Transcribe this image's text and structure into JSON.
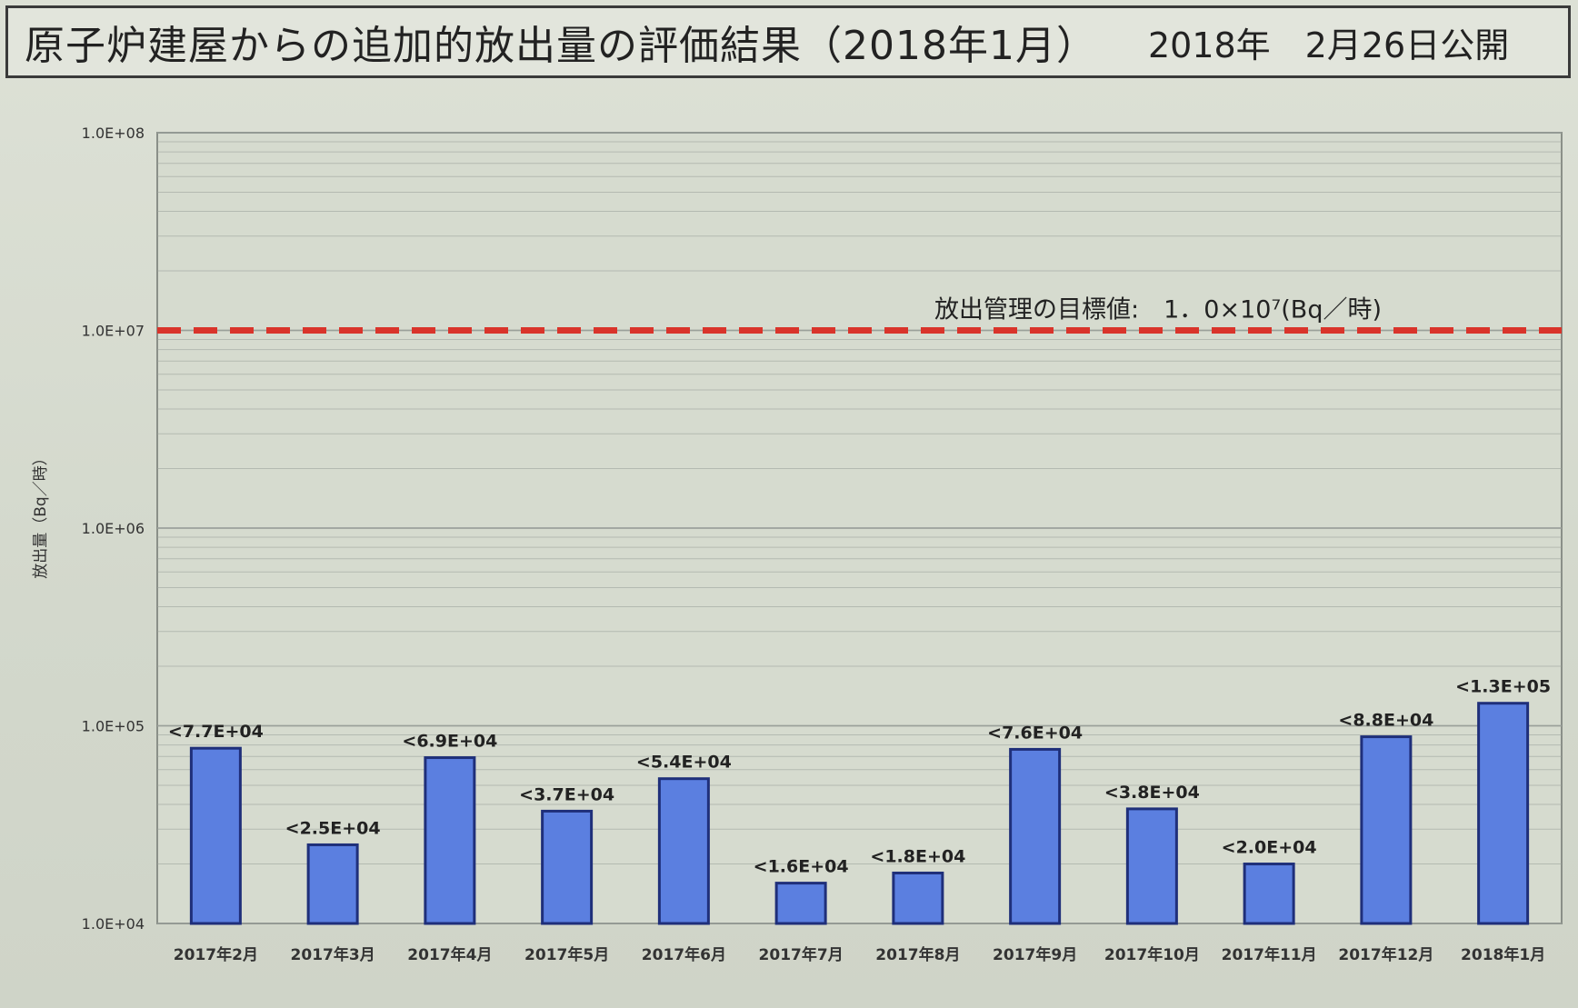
{
  "title": {
    "main": "原子炉建屋からの追加的放出量の評価結果（2018年1月）",
    "published": "2018年　2月26日公開"
  },
  "colors": {
    "bar_fill": "#5b7fe0",
    "bar_stroke": "#1f2f7a",
    "target_line": "#d9342b",
    "grid": "#9aa09a",
    "background": "#d7dbd0"
  },
  "chart_data": {
    "type": "bar",
    "ylabel": "放出量（Bq／時）",
    "yscale": "log",
    "ylim": [
      10000,
      100000000
    ],
    "yticks": [
      10000,
      100000,
      1000000,
      10000000,
      100000000
    ],
    "yticklabels": [
      "1.0E+04",
      "1.0E+05",
      "1.0E+06",
      "1.0E+07",
      "1.0E+08"
    ],
    "grid": true,
    "categories": [
      "2017年2月",
      "2017年3月",
      "2017年4月",
      "2017年5月",
      "2017年6月",
      "2017年7月",
      "2017年8月",
      "2017年9月",
      "2017年10月",
      "2017年11月",
      "2017年12月",
      "2018年1月"
    ],
    "values": [
      77000,
      25000,
      69000,
      37000,
      54000,
      16000,
      18000,
      76000,
      38000,
      20000,
      88000,
      130000
    ],
    "data_labels": [
      "<7.7E+04",
      "<2.5E+04",
      "<6.9E+04",
      "<3.7E+04",
      "<5.4E+04",
      "<1.6E+04",
      "<1.8E+04",
      "<7.6E+04",
      "<3.8E+04",
      "<2.0E+04",
      "<8.8E+04",
      "<1.3E+05"
    ],
    "target": {
      "value": 10000000,
      "label": "放出管理の目標値:　1．0×10⁷(Bq／時)",
      "style": "dashed"
    }
  }
}
